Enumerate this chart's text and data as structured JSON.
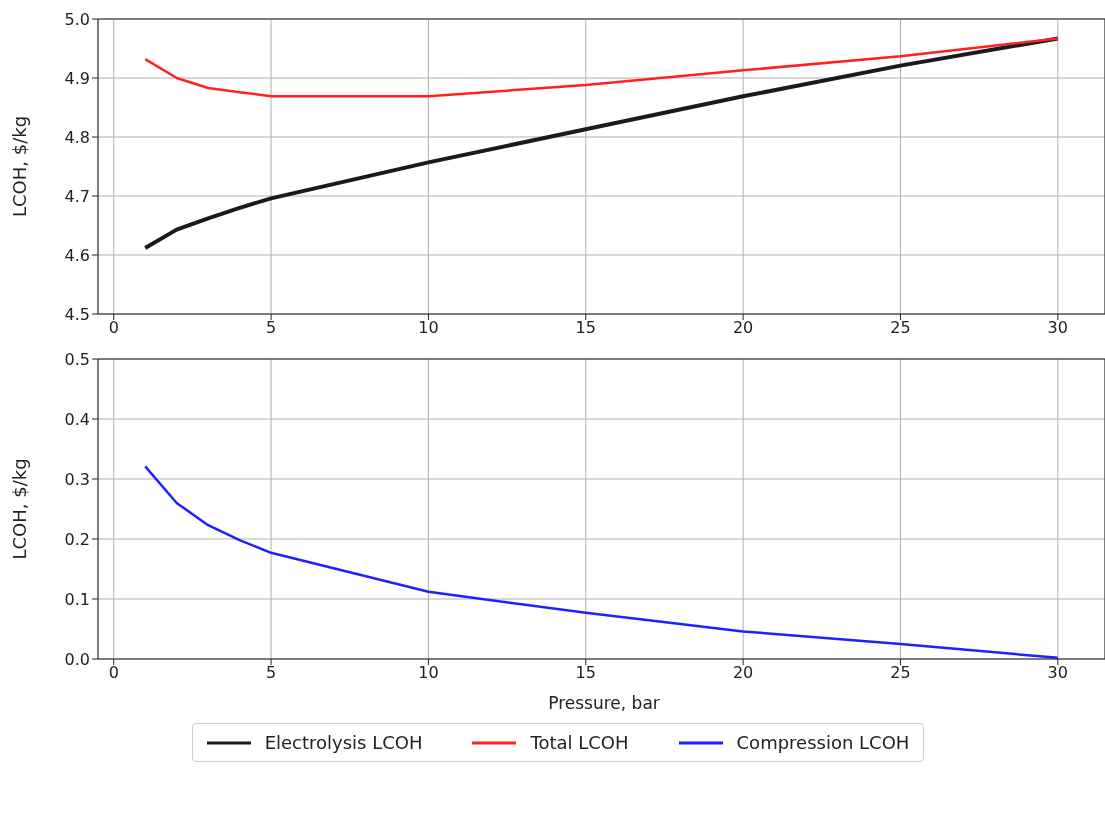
{
  "chart_data": [
    {
      "type": "line",
      "ylabel": "LCOH, $/kg",
      "x": [
        1,
        2,
        3,
        4,
        5,
        10,
        15,
        20,
        25,
        30
      ],
      "xlim": [
        -0.5,
        31.5
      ],
      "xticks": [
        0,
        5,
        10,
        15,
        20,
        25,
        30
      ],
      "ylim": [
        4.5,
        5.0
      ],
      "yticks": [
        4.5,
        4.6,
        4.7,
        4.8,
        4.9,
        {
          "value": 5,
          "label": "5.0"
        }
      ],
      "grid": true,
      "legend": "bottom",
      "line_style": "solid",
      "marker": "none",
      "series": [
        {
          "name": "Electrolysis LCOH",
          "color": "#1a1a1a",
          "values": [
            4.612,
            4.643,
            4.662,
            4.68,
            4.696,
            4.757,
            4.813,
            4.869,
            4.921,
            4.967
          ]
        },
        {
          "name": "Total LCOH",
          "color": "#ff2020",
          "values": [
            4.932,
            4.9,
            4.883,
            4.876,
            4.869,
            4.869,
            4.888,
            4.913,
            4.937,
            4.967
          ]
        }
      ]
    },
    {
      "type": "line",
      "ylabel": "LCOH, $/kg",
      "xlabel": "Pressure, bar",
      "x": [
        1,
        2,
        3,
        4,
        5,
        10,
        15,
        20,
        25,
        30
      ],
      "xlim": [
        -0.5,
        31.5
      ],
      "xticks": [
        0,
        5,
        10,
        15,
        20,
        25,
        30
      ],
      "ylim": [
        0,
        0.5
      ],
      "yticks": [
        {
          "value": 0,
          "label": "0.0"
        },
        0.1,
        0.2,
        0.3,
        0.4,
        0.5
      ],
      "grid": true,
      "legend": "bottom",
      "line_style": "solid",
      "marker": "none",
      "series": [
        {
          "name": "Compression LCOH",
          "color": "#2020ff",
          "values": [
            0.321,
            0.26,
            0.223,
            0.198,
            0.177,
            0.112,
            0.077,
            0.046,
            0.025,
            0.002
          ]
        }
      ]
    }
  ]
}
